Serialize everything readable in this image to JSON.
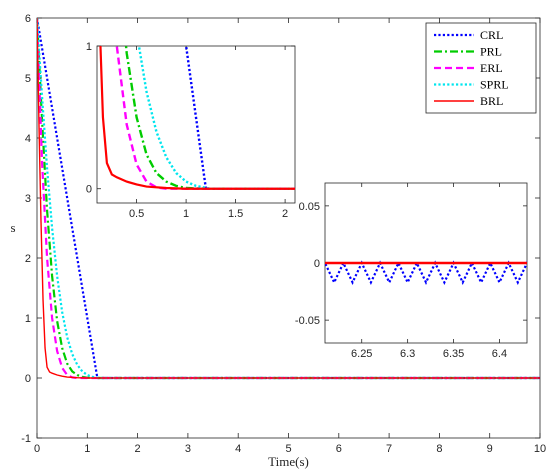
{
  "chart_data": {
    "type": "line",
    "main": {
      "xlabel": "Time(s)",
      "ylabel": "s",
      "xlim": [
        0,
        10
      ],
      "ylim": [
        -1,
        6
      ],
      "xticks": [
        "0",
        "1",
        "2",
        "3",
        "4",
        "5",
        "6",
        "7",
        "8",
        "9",
        "10"
      ],
      "yticks": [
        "-1",
        "0",
        "1",
        "2",
        "3",
        "4",
        "5",
        "6"
      ],
      "grid": false,
      "legend": "top-right"
    },
    "series": [
      {
        "name": "CRL",
        "color": "#0000ff",
        "style": "dotted",
        "points": [
          [
            0,
            6
          ],
          [
            1.2,
            0
          ],
          [
            10,
            0
          ]
        ]
      },
      {
        "name": "PRL",
        "color": "#00cc00",
        "style": "dashdot",
        "points": [
          [
            0,
            6
          ],
          [
            0.1,
            4.3
          ],
          [
            0.2,
            2.8
          ],
          [
            0.3,
            1.7
          ],
          [
            0.4,
            0.95
          ],
          [
            0.5,
            0.5
          ],
          [
            0.6,
            0.24
          ],
          [
            0.7,
            0.11
          ],
          [
            0.8,
            0.05
          ],
          [
            0.9,
            0.02
          ],
          [
            1.0,
            0.005
          ],
          [
            1.2,
            0
          ],
          [
            10,
            0
          ]
        ]
      },
      {
        "name": "ERL",
        "color": "#ff00ff",
        "style": "dashed",
        "points": [
          [
            0,
            6
          ],
          [
            0.1,
            3.6
          ],
          [
            0.2,
            2.0
          ],
          [
            0.3,
            1.0
          ],
          [
            0.4,
            0.45
          ],
          [
            0.5,
            0.17
          ],
          [
            0.6,
            0.05
          ],
          [
            0.7,
            0.01
          ],
          [
            0.8,
            0
          ],
          [
            10,
            0
          ]
        ]
      },
      {
        "name": "SPRL",
        "color": "#00e5ee",
        "style": "dotted",
        "points": [
          [
            0,
            6
          ],
          [
            0.1,
            4.7
          ],
          [
            0.2,
            3.5
          ],
          [
            0.3,
            2.5
          ],
          [
            0.4,
            1.7
          ],
          [
            0.5,
            1.1
          ],
          [
            0.6,
            0.68
          ],
          [
            0.7,
            0.4
          ],
          [
            0.8,
            0.22
          ],
          [
            0.9,
            0.11
          ],
          [
            1.0,
            0.05
          ],
          [
            1.1,
            0.02
          ],
          [
            1.25,
            0
          ],
          [
            10,
            0
          ]
        ]
      },
      {
        "name": "BRL",
        "color": "#ff0000",
        "style": "solid",
        "points": [
          [
            0,
            6
          ],
          [
            0.04,
            4.2
          ],
          [
            0.08,
            2.6
          ],
          [
            0.12,
            1.3
          ],
          [
            0.16,
            0.5
          ],
          [
            0.2,
            0.18
          ],
          [
            0.25,
            0.1
          ],
          [
            0.3,
            0.08
          ],
          [
            0.4,
            0.05
          ],
          [
            0.5,
            0.03
          ],
          [
            0.6,
            0.015
          ],
          [
            0.8,
            0.005
          ],
          [
            1.0,
            0
          ],
          [
            10,
            0
          ]
        ]
      }
    ],
    "inset1": {
      "xlim": [
        0.1,
        2.1
      ],
      "ylim": [
        -0.1,
        1
      ],
      "xticks": [
        "0.5",
        "1",
        "1.5",
        "2"
      ],
      "yticks": [
        "0",
        "1"
      ]
    },
    "inset2": {
      "xlim": [
        6.21,
        6.43
      ],
      "ylim": [
        -0.07,
        0.07
      ],
      "xticks": [
        "6.25",
        "6.3",
        "6.35",
        "6.4"
      ],
      "yticks": [
        "-0.05",
        "0",
        "0.05"
      ],
      "crl_ripple_amplitude": 0.017,
      "crl_ripple_period": 0.02
    }
  }
}
